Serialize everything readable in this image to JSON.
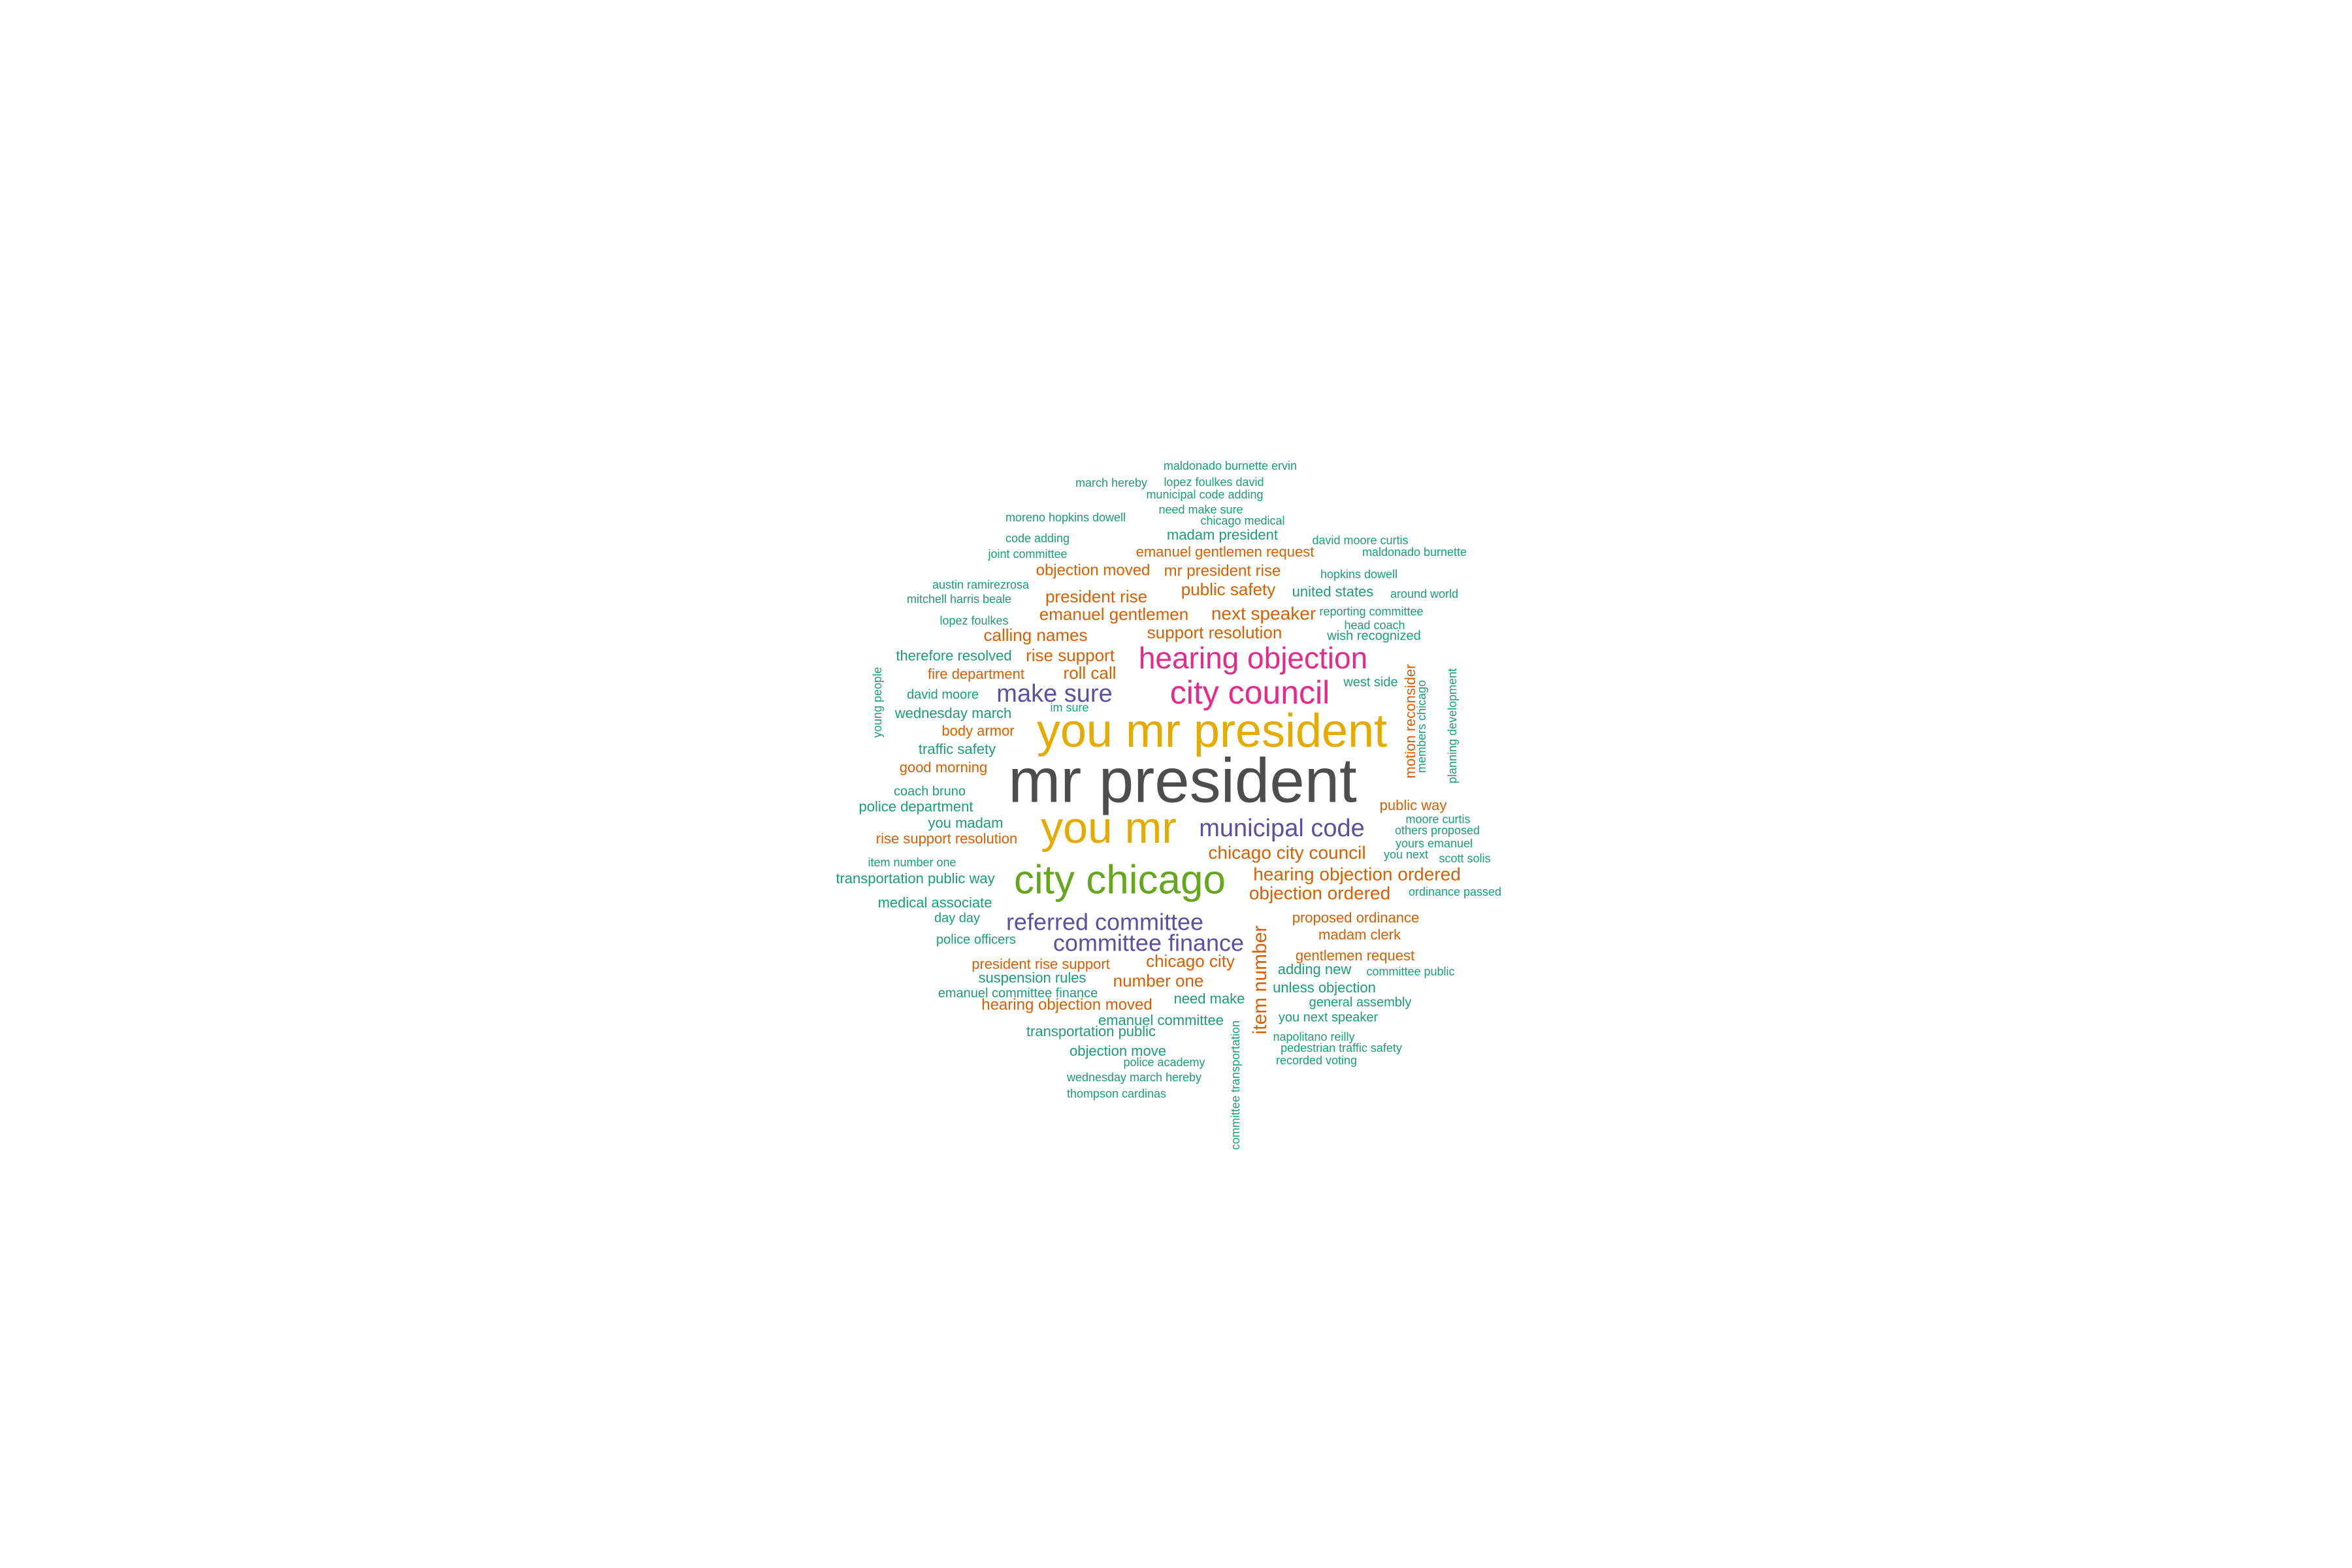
{
  "palette": {
    "gray": "#4d4d4d",
    "orange": "#d95f02",
    "teal": "#1b9e77",
    "purple": "#5e4fa2",
    "magenta": "#e7298a",
    "gold": "#e6ab02",
    "green": "#66a61e"
  },
  "words": [
    {
      "text": "mr president",
      "color": "gray"
    },
    {
      "text": "you mr president",
      "color": "gold"
    },
    {
      "text": "you mr",
      "color": "gold"
    },
    {
      "text": "city chicago",
      "color": "green"
    },
    {
      "text": "hearing objection",
      "color": "magenta"
    },
    {
      "text": "city council",
      "color": "magenta"
    },
    {
      "text": "make sure",
      "color": "purple"
    },
    {
      "text": "municipal code",
      "color": "purple"
    },
    {
      "text": "referred committee",
      "color": "purple"
    },
    {
      "text": "committee finance",
      "color": "purple"
    },
    {
      "text": "item number",
      "color": "orange"
    },
    {
      "text": "chicago city council",
      "color": "orange"
    },
    {
      "text": "hearing objection ordered",
      "color": "orange"
    },
    {
      "text": "objection ordered",
      "color": "orange"
    },
    {
      "text": "emanuel gentlemen request",
      "color": "orange"
    },
    {
      "text": "objection moved",
      "color": "orange"
    },
    {
      "text": "mr president rise",
      "color": "orange"
    },
    {
      "text": "president rise",
      "color": "orange"
    },
    {
      "text": "public safety",
      "color": "orange"
    },
    {
      "text": "emanuel gentlemen",
      "color": "orange"
    },
    {
      "text": "next speaker",
      "color": "orange"
    },
    {
      "text": "calling names",
      "color": "orange"
    },
    {
      "text": "support resolution",
      "color": "orange"
    },
    {
      "text": "rise support",
      "color": "orange"
    },
    {
      "text": "roll call",
      "color": "orange"
    },
    {
      "text": "fire department",
      "color": "orange"
    },
    {
      "text": "body armor",
      "color": "orange"
    },
    {
      "text": "good morning",
      "color": "orange"
    },
    {
      "text": "rise support resolution",
      "color": "orange"
    },
    {
      "text": "public way",
      "color": "orange"
    },
    {
      "text": "motion reconsider",
      "color": "orange"
    },
    {
      "text": "proposed ordinance",
      "color": "orange"
    },
    {
      "text": "madam clerk",
      "color": "orange"
    },
    {
      "text": "gentlemen request",
      "color": "orange"
    },
    {
      "text": "chicago city",
      "color": "orange"
    },
    {
      "text": "president rise support",
      "color": "orange"
    },
    {
      "text": "number one",
      "color": "orange"
    },
    {
      "text": "hearing objection moved",
      "color": "orange"
    },
    {
      "text": "maldonado burnette ervin",
      "color": "teal"
    },
    {
      "text": "march hereby",
      "color": "teal"
    },
    {
      "text": "lopez foulkes david",
      "color": "teal"
    },
    {
      "text": "municipal code adding",
      "color": "teal"
    },
    {
      "text": "need make sure",
      "color": "teal"
    },
    {
      "text": "moreno hopkins dowell",
      "color": "teal"
    },
    {
      "text": "chicago medical",
      "color": "teal"
    },
    {
      "text": "madam president",
      "color": "teal"
    },
    {
      "text": "code adding",
      "color": "teal"
    },
    {
      "text": "david moore curtis",
      "color": "teal"
    },
    {
      "text": "joint committee",
      "color": "teal"
    },
    {
      "text": "maldonado burnette",
      "color": "teal"
    },
    {
      "text": "hopkins dowell",
      "color": "teal"
    },
    {
      "text": "austin ramirezrosa",
      "color": "teal"
    },
    {
      "text": "united states",
      "color": "teal"
    },
    {
      "text": "around world",
      "color": "teal"
    },
    {
      "text": "mitchell harris beale",
      "color": "teal"
    },
    {
      "text": "reporting committee",
      "color": "teal"
    },
    {
      "text": "lopez foulkes",
      "color": "teal"
    },
    {
      "text": "head coach",
      "color": "teal"
    },
    {
      "text": "wish recognized",
      "color": "teal"
    },
    {
      "text": "therefore resolved",
      "color": "teal"
    },
    {
      "text": "young people",
      "color": "teal"
    },
    {
      "text": "planning development",
      "color": "teal"
    },
    {
      "text": "members chicago",
      "color": "teal"
    },
    {
      "text": "west side",
      "color": "teal"
    },
    {
      "text": "david moore",
      "color": "teal"
    },
    {
      "text": "im sure",
      "color": "teal"
    },
    {
      "text": "wednesday march",
      "color": "teal"
    },
    {
      "text": "traffic safety",
      "color": "teal"
    },
    {
      "text": "coach bruno",
      "color": "teal"
    },
    {
      "text": "police department",
      "color": "teal"
    },
    {
      "text": "you madam",
      "color": "teal"
    },
    {
      "text": "moore curtis",
      "color": "teal"
    },
    {
      "text": "others proposed",
      "color": "teal"
    },
    {
      "text": "yours emanuel",
      "color": "teal"
    },
    {
      "text": "you next",
      "color": "teal"
    },
    {
      "text": "scott solis",
      "color": "teal"
    },
    {
      "text": "item number one",
      "color": "teal"
    },
    {
      "text": "transportation public way",
      "color": "teal"
    },
    {
      "text": "ordinance passed",
      "color": "teal"
    },
    {
      "text": "medical associate",
      "color": "teal"
    },
    {
      "text": "day day",
      "color": "teal"
    },
    {
      "text": "police officers",
      "color": "teal"
    },
    {
      "text": "adding new",
      "color": "teal"
    },
    {
      "text": "committee public",
      "color": "teal"
    },
    {
      "text": "suspension rules",
      "color": "teal"
    },
    {
      "text": "unless objection",
      "color": "teal"
    },
    {
      "text": "emanuel committee finance",
      "color": "teal"
    },
    {
      "text": "need make",
      "color": "teal"
    },
    {
      "text": "general assembly",
      "color": "teal"
    },
    {
      "text": "emanuel committee",
      "color": "teal"
    },
    {
      "text": "you next speaker",
      "color": "teal"
    },
    {
      "text": "transportation public",
      "color": "teal"
    },
    {
      "text": "napolitano reilly",
      "color": "teal"
    },
    {
      "text": "objection move",
      "color": "teal"
    },
    {
      "text": "pedestrian traffic safety",
      "color": "teal"
    },
    {
      "text": "police academy",
      "color": "teal"
    },
    {
      "text": "recorded voting",
      "color": "teal"
    },
    {
      "text": "wednesday march hereby",
      "color": "teal"
    },
    {
      "text": "thompson cardinas",
      "color": "teal"
    },
    {
      "text": "committee transportation",
      "color": "teal"
    }
  ]
}
